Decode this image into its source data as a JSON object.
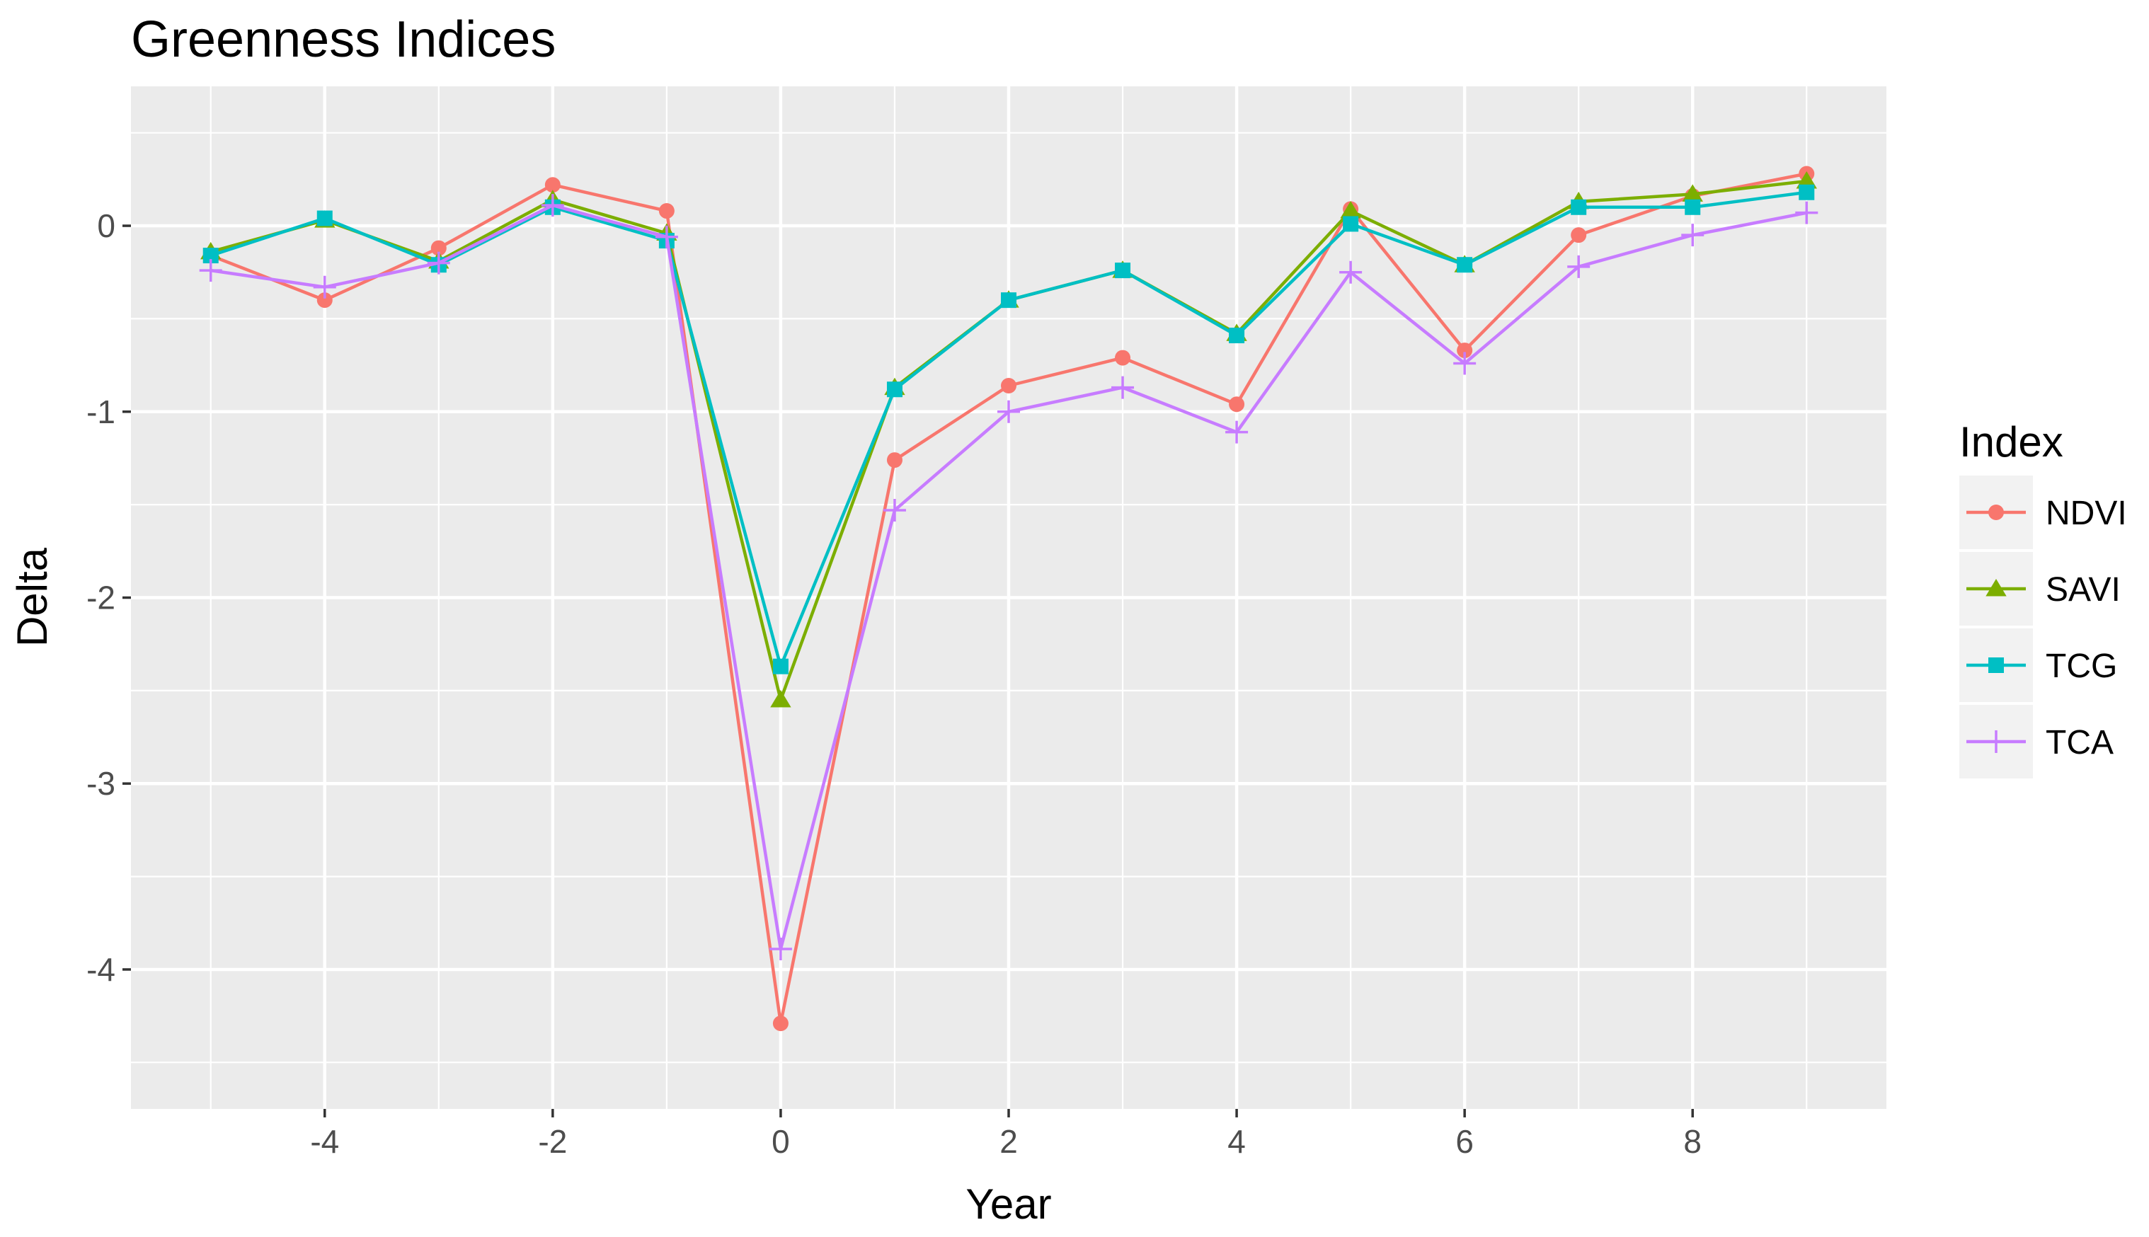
{
  "chart_data": {
    "type": "line",
    "title": "Greenness Indices",
    "xlabel": "Year",
    "ylabel": "Delta",
    "x": [
      -5,
      -4,
      -3,
      -2,
      -1,
      0,
      1,
      2,
      3,
      4,
      5,
      6,
      7,
      8,
      9
    ],
    "xlim": [
      -5.7,
      9.7
    ],
    "ylim": [
      -4.75,
      0.75
    ],
    "x_ticks": [
      -4,
      -2,
      0,
      2,
      4,
      6,
      8
    ],
    "x_tick_labels": [
      "-4",
      "-2",
      "0",
      "2",
      "4",
      "6",
      "8"
    ],
    "y_ticks": [
      -4,
      -3,
      -2,
      -1,
      0
    ],
    "y_tick_labels": [
      "-4",
      "-3",
      "-2",
      "-1",
      "0"
    ],
    "grid": true,
    "background": "#ebebeb",
    "legend": {
      "title": "Index",
      "position": "right"
    },
    "series": [
      {
        "name": "NDVI",
        "color": "#F8766D",
        "marker": "circle",
        "values": [
          -0.16,
          -0.4,
          -0.12,
          0.22,
          0.08,
          -4.29,
          -1.26,
          -0.86,
          -0.71,
          -0.96,
          0.09,
          -0.67,
          -0.05,
          0.16,
          0.28
        ]
      },
      {
        "name": "SAVI",
        "color": "#7CAE00",
        "marker": "triangle",
        "values": [
          -0.14,
          0.03,
          -0.19,
          0.14,
          -0.04,
          -2.55,
          -0.87,
          -0.4,
          -0.24,
          -0.58,
          0.08,
          -0.21,
          0.13,
          0.17,
          0.24
        ]
      },
      {
        "name": "TCG",
        "color": "#00BFC4",
        "marker": "square",
        "values": [
          -0.16,
          0.04,
          -0.21,
          0.1,
          -0.08,
          -2.37,
          -0.88,
          -0.4,
          -0.24,
          -0.59,
          0.01,
          -0.21,
          0.1,
          0.1,
          0.18
        ]
      },
      {
        "name": "TCA",
        "color": "#C77CFF",
        "marker": "plus",
        "values": [
          -0.24,
          -0.33,
          -0.2,
          0.11,
          -0.06,
          -3.89,
          -1.53,
          -1.0,
          -0.87,
          -1.11,
          -0.25,
          -0.74,
          -0.22,
          -0.05,
          0.07
        ]
      }
    ]
  }
}
